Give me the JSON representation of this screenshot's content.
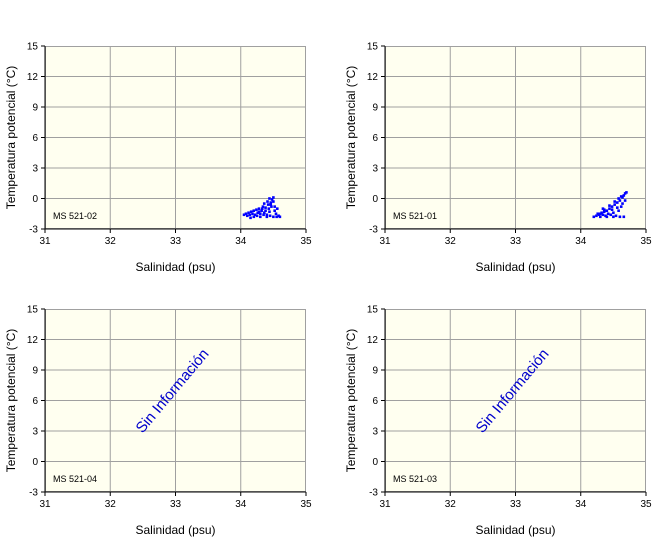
{
  "colors": {
    "plot_bg": "#FFFFF0",
    "grid": "#A0A0A0",
    "axis": "#000000",
    "series": "#0000FF",
    "annotation": "#0000CC"
  },
  "chart_data": [
    {
      "type": "scatter",
      "station": "MS 521-02",
      "xlabel": "Salinidad (psu)",
      "ylabel": "Temperatura potencial (°C)",
      "xlim": [
        31,
        35
      ],
      "ylim": [
        -3,
        15
      ],
      "xticks": [
        "31",
        "32",
        "33",
        "34",
        "35"
      ],
      "yticks": [
        "-3",
        "0",
        "3",
        "6",
        "9",
        "12",
        "15"
      ],
      "grid": true,
      "annotation": "",
      "points": [
        [
          34.05,
          -1.6
        ],
        [
          34.08,
          -1.5
        ],
        [
          34.1,
          -1.7
        ],
        [
          34.12,
          -1.4
        ],
        [
          34.14,
          -1.6
        ],
        [
          34.16,
          -1.3
        ],
        [
          34.18,
          -1.5
        ],
        [
          34.2,
          -1.2
        ],
        [
          34.22,
          -1.6
        ],
        [
          34.24,
          -1.1
        ],
        [
          34.26,
          -1.4
        ],
        [
          34.28,
          -1.0
        ],
        [
          34.3,
          -1.5
        ],
        [
          34.32,
          -1.2
        ],
        [
          34.34,
          -0.8
        ],
        [
          34.36,
          -1.4
        ],
        [
          34.38,
          -0.9
        ],
        [
          34.4,
          -1.6
        ],
        [
          34.42,
          -0.6
        ],
        [
          34.44,
          -1.3
        ],
        [
          34.46,
          -0.4
        ],
        [
          34.48,
          -0.1
        ],
        [
          34.5,
          -0.3
        ],
        [
          34.52,
          -1.2
        ],
        [
          34.54,
          -1.5
        ],
        [
          34.56,
          -1.0
        ],
        [
          34.58,
          -1.7
        ],
        [
          34.6,
          -1.8
        ],
        [
          34.2,
          -1.8
        ],
        [
          34.3,
          -1.8
        ],
        [
          34.4,
          -1.8
        ],
        [
          34.5,
          -1.8
        ],
        [
          34.15,
          -1.9
        ],
        [
          34.25,
          -1.7
        ],
        [
          34.35,
          -1.6
        ],
        [
          34.45,
          -1.7
        ],
        [
          34.55,
          -1.8
        ],
        [
          34.28,
          -1.3
        ],
        [
          34.33,
          -1.0
        ],
        [
          34.38,
          -1.2
        ],
        [
          34.43,
          -1.0
        ],
        [
          34.47,
          -0.8
        ],
        [
          34.36,
          -0.5
        ],
        [
          34.41,
          -0.3
        ],
        [
          34.44,
          0.0
        ],
        [
          34.5,
          0.1
        ],
        [
          34.46,
          -0.6
        ],
        [
          34.52,
          -0.8
        ]
      ]
    },
    {
      "type": "scatter",
      "station": "MS 521-01",
      "xlabel": "Salinidad (psu)",
      "ylabel": "Temperatura potencial (°C)",
      "xlim": [
        31,
        35
      ],
      "ylim": [
        -3,
        15
      ],
      "xticks": [
        "31",
        "32",
        "33",
        "34",
        "35"
      ],
      "yticks": [
        "-3",
        "0",
        "3",
        "6",
        "9",
        "12",
        "15"
      ],
      "grid": true,
      "annotation": "",
      "points": [
        [
          34.2,
          -1.8
        ],
        [
          34.24,
          -1.7
        ],
        [
          34.28,
          -1.6
        ],
        [
          34.3,
          -1.5
        ],
        [
          34.32,
          -1.4
        ],
        [
          34.34,
          -1.6
        ],
        [
          34.36,
          -1.3
        ],
        [
          34.38,
          -1.7
        ],
        [
          34.4,
          -1.2
        ],
        [
          34.42,
          -1.5
        ],
        [
          34.44,
          -1.0
        ],
        [
          34.46,
          -1.6
        ],
        [
          34.48,
          -0.8
        ],
        [
          34.5,
          -1.4
        ],
        [
          34.52,
          -0.6
        ],
        [
          34.54,
          -1.7
        ],
        [
          34.56,
          -0.4
        ],
        [
          34.58,
          -1.2
        ],
        [
          34.6,
          -0.2
        ],
        [
          34.62,
          -0.8
        ],
        [
          34.64,
          0.1
        ],
        [
          34.66,
          0.3
        ],
        [
          34.68,
          0.5
        ],
        [
          34.7,
          0.6
        ],
        [
          34.3,
          -1.8
        ],
        [
          34.4,
          -1.8
        ],
        [
          34.5,
          -1.8
        ],
        [
          34.6,
          -1.8
        ],
        [
          34.66,
          -1.8
        ],
        [
          34.36,
          -1.1
        ],
        [
          34.44,
          -0.7
        ],
        [
          34.52,
          -0.3
        ],
        [
          34.58,
          0.0
        ],
        [
          34.62,
          0.2
        ],
        [
          34.48,
          -1.1
        ],
        [
          34.56,
          -0.9
        ],
        [
          34.64,
          -0.5
        ],
        [
          34.68,
          -0.2
        ],
        [
          34.26,
          -1.5
        ],
        [
          34.34,
          -1.0
        ]
      ]
    },
    {
      "type": "scatter",
      "station": "MS 521-04",
      "xlabel": "Salinidad (psu)",
      "ylabel": "Temperatura potencial (°C)",
      "xlim": [
        31,
        35
      ],
      "ylim": [
        -3,
        15
      ],
      "xticks": [
        "31",
        "32",
        "33",
        "34",
        "35"
      ],
      "yticks": [
        "-3",
        "0",
        "3",
        "6",
        "9",
        "12",
        "15"
      ],
      "grid": true,
      "annotation": "Sin Información",
      "points": []
    },
    {
      "type": "scatter",
      "station": "MS 521-03",
      "xlabel": "Salinidad (psu)",
      "ylabel": "Temperatura potencial (°C)",
      "xlim": [
        31,
        35
      ],
      "ylim": [
        -3,
        15
      ],
      "xticks": [
        "31",
        "32",
        "33",
        "34",
        "35"
      ],
      "yticks": [
        "-3",
        "0",
        "3",
        "6",
        "9",
        "12",
        "15"
      ],
      "grid": true,
      "annotation": "Sin Información",
      "points": []
    }
  ]
}
